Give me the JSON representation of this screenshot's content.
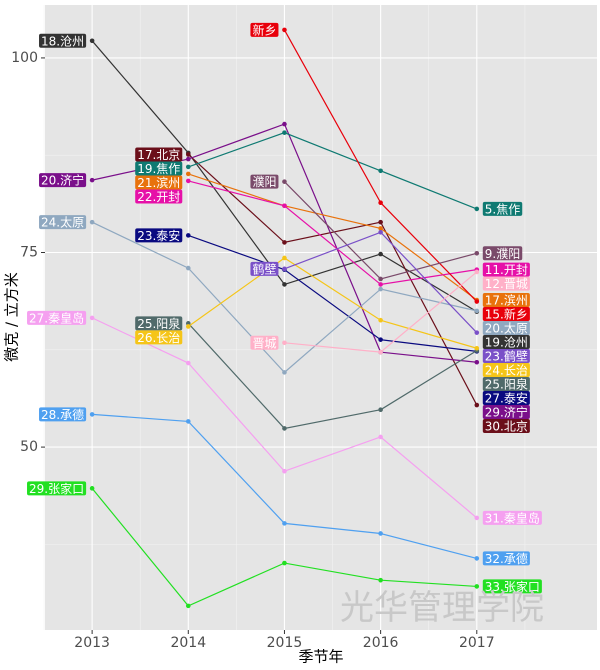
{
  "chart_data": {
    "type": "line",
    "x_label": "季节年",
    "y_label": "微克 / 立方米",
    "watermark": "光华管理学院",
    "x": [
      2013,
      2014,
      2015,
      2016,
      2017
    ],
    "xlim": [
      2012.51,
      2018.25
    ],
    "xticks": [
      2013,
      2014,
      2015,
      2016,
      2017
    ],
    "ylim": [
      26.5,
      106.8
    ],
    "yticks": [
      50,
      75,
      100
    ],
    "grid": true,
    "series": [
      {
        "name": "沧州",
        "color": "#333333",
        "values": [
          102.2,
          87.8,
          70.9,
          74.8,
          67.4
        ],
        "labels": [
          "18.沧州",
          "19.沧州"
        ]
      },
      {
        "name": "北京",
        "color": "#6b0f1a",
        "values": [
          null,
          87.6,
          76.3,
          78.9,
          55.4
        ],
        "labels": [
          "17.北京",
          "30.北京"
        ]
      },
      {
        "name": "济宁",
        "color": "#7a0f8a",
        "values": [
          84.3,
          87.0,
          91.5,
          62.2,
          60.9
        ],
        "labels": [
          "20.济宁",
          "29.济宁"
        ]
      },
      {
        "name": "焦作",
        "color": "#0f7a72",
        "values": [
          null,
          86.0,
          90.4,
          85.5,
          80.6
        ],
        "labels": [
          "19.焦作",
          "5.焦作"
        ]
      },
      {
        "name": "滨州",
        "color": "#e8720c",
        "values": [
          null,
          85.1,
          81.0,
          78.1,
          68.9
        ],
        "labels": [
          "21.滨州",
          "17.滨州"
        ]
      },
      {
        "name": "开封",
        "color": "#e610a8",
        "values": [
          null,
          84.2,
          81.0,
          70.9,
          72.8
        ],
        "labels": [
          "22.开封",
          "11.开封"
        ]
      },
      {
        "name": "泰安",
        "color": "#0a0a80",
        "values": [
          null,
          77.2,
          72.8,
          63.8,
          62.3
        ],
        "labels": [
          "23.泰安",
          "27.泰安"
        ]
      },
      {
        "name": "太原",
        "color": "#8fa8c0",
        "values": [
          78.9,
          73.0,
          59.6,
          70.3,
          67.5
        ],
        "labels": [
          "24.太原",
          "20.太原"
        ]
      },
      {
        "name": "阳泉",
        "color": "#506a6a",
        "values": [
          null,
          65.9,
          52.4,
          54.8,
          62.4
        ],
        "labels": [
          "25.阳泉",
          "25.阳泉"
        ]
      },
      {
        "name": "长治",
        "color": "#f5c518",
        "values": [
          null,
          65.5,
          74.3,
          66.3,
          62.7
        ],
        "labels": [
          "26.长治",
          "24.长治"
        ]
      },
      {
        "name": "秦皇岛",
        "color": "#f5a0f0",
        "values": [
          66.6,
          60.8,
          46.9,
          51.3,
          40.9
        ],
        "labels": [
          "27.秦皇岛",
          "31.秦皇岛"
        ]
      },
      {
        "name": "承德",
        "color": "#4fa0f0",
        "values": [
          54.2,
          53.3,
          40.2,
          38.9,
          35.7
        ],
        "labels": [
          "28.承德",
          "32.承德"
        ]
      },
      {
        "name": "张家口",
        "color": "#22e022",
        "values": [
          44.7,
          29.6,
          35.1,
          32.9,
          32.1
        ],
        "labels": [
          "29.张家口",
          "33.张家口"
        ]
      },
      {
        "name": "新乡",
        "color": "#e8000b",
        "values": [
          null,
          null,
          103.6,
          81.4,
          68.7
        ],
        "labels": [
          "新乡",
          "15.新乡"
        ]
      },
      {
        "name": "濮阳",
        "color": "#7a4a6a",
        "values": [
          null,
          null,
          84.1,
          71.6,
          74.9
        ],
        "labels": [
          "濮阳",
          "9.濮阳"
        ]
      },
      {
        "name": "鹤壁",
        "color": "#7a50c8",
        "values": [
          null,
          null,
          72.9,
          77.6,
          64.7
        ],
        "labels": [
          "鹤壁",
          "23.鹤壁"
        ]
      },
      {
        "name": "晋城",
        "color": "#ffb0c8",
        "values": [
          null,
          null,
          63.4,
          62.2,
          72.5
        ],
        "labels": [
          "晋城",
          "12.晋城"
        ]
      }
    ]
  }
}
